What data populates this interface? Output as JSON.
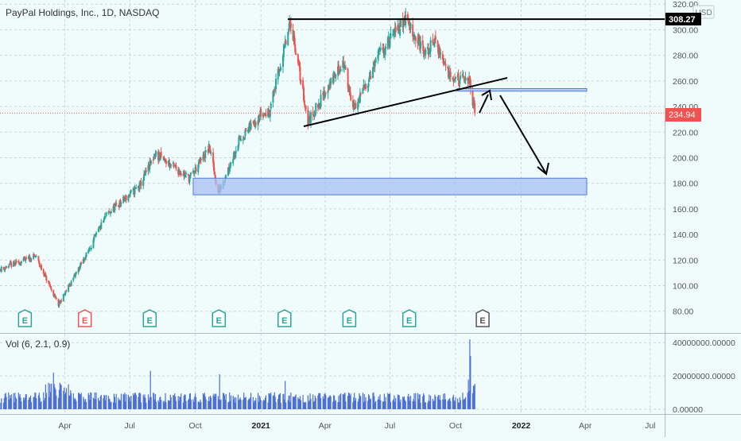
{
  "header": {
    "title": "PayPal Holdings, Inc., 1D, NASDAQ",
    "currency": "USD"
  },
  "price_tags": {
    "high": "308.27",
    "last": "234.94"
  },
  "colors": {
    "background": "#f0fcfc",
    "grid": "#c8d4d8",
    "up": "#26a69a",
    "down": "#ef5350",
    "volume": "#4c6fd6",
    "zone_fill": "#a8c0f4",
    "zone_stroke": "#4f7bdc",
    "drawing": "#000000",
    "last_price": "#ef5350",
    "earnings_green": "#26a69a",
    "earnings_red": "#ef5350",
    "earnings_gray": "#555555"
  },
  "chart_data": [
    {
      "type": "candlestick",
      "x_ticks": [
        "Apr",
        "Jul",
        "Oct",
        "2021",
        "Apr",
        "Jul",
        "Oct",
        "2022",
        "Apr",
        "Jul"
      ],
      "y_ticks": [
        "80.00",
        "100.00",
        "120.00",
        "140.00",
        "160.00",
        "180.00",
        "200.00",
        "220.00",
        "240.00",
        "260.00",
        "280.00",
        "300.00",
        "320.00"
      ],
      "ylim": [
        73,
        322
      ],
      "date_range": [
        "2020-01-02",
        "2021-10-28"
      ],
      "series": [
        {
          "key_points": [
            {
              "date": "2020-01-02",
              "close": 113
            },
            {
              "date": "2020-02-20",
              "close": 123
            },
            {
              "date": "2020-03-23",
              "close": 85
            },
            {
              "date": "2020-04-30",
              "close": 123
            },
            {
              "date": "2020-05-29",
              "close": 155
            },
            {
              "date": "2020-07-15",
              "close": 178
            },
            {
              "date": "2020-08-06",
              "close": 203
            },
            {
              "date": "2020-09-23",
              "close": 184
            },
            {
              "date": "2020-10-21",
              "close": 208
            },
            {
              "date": "2020-11-02",
              "close": 172
            },
            {
              "date": "2020-12-01",
              "close": 213
            },
            {
              "date": "2020-12-31",
              "close": 234
            },
            {
              "date": "2021-01-12",
              "close": 235
            },
            {
              "date": "2021-02-12",
              "close": 306
            },
            {
              "date": "2021-03-08",
              "close": 228
            },
            {
              "date": "2021-04-26",
              "close": 275
            },
            {
              "date": "2021-05-12",
              "close": 237
            },
            {
              "date": "2021-06-15",
              "close": 280
            },
            {
              "date": "2021-07-23",
              "close": 309
            },
            {
              "date": "2021-08-20",
              "close": 280
            },
            {
              "date": "2021-09-01",
              "close": 292
            },
            {
              "date": "2021-09-20",
              "close": 268
            },
            {
              "date": "2021-10-06",
              "close": 260
            },
            {
              "date": "2021-10-19",
              "close": 262
            },
            {
              "date": "2021-10-28",
              "close": 234.94
            }
          ]
        }
      ],
      "annotations": {
        "resistance_line": 308.27,
        "last_price_line": 234.94,
        "support_zone": [
          171,
          184
        ],
        "retest_zone": [
          252,
          254
        ],
        "earnings_markers": [
          {
            "date": "2020-02-05",
            "label": "E",
            "result": "beat"
          },
          {
            "date": "2020-04-29",
            "label": "E",
            "result": "miss"
          },
          {
            "date": "2020-07-29",
            "label": "E",
            "result": "beat"
          },
          {
            "date": "2020-11-03",
            "label": "E",
            "result": "beat"
          },
          {
            "date": "2021-02-03",
            "label": "E",
            "result": "beat"
          },
          {
            "date": "2021-05-05",
            "label": "E",
            "result": "beat"
          },
          {
            "date": "2021-07-28",
            "label": "E",
            "result": "beat"
          },
          {
            "date": "2021-11-08",
            "label": "E",
            "result": "upcoming"
          }
        ]
      }
    },
    {
      "type": "bar",
      "title": "Vol (6, 2.1, 0.9)",
      "y_ticks": [
        "0.00000",
        "20000000.00000",
        "40000000.00000"
      ],
      "ylim": [
        0,
        42000000
      ],
      "typical_volume": 7000000,
      "spikes": [
        {
          "date": "2020-03-16",
          "value": 22000000
        },
        {
          "date": "2020-07-30",
          "value": 23000000
        },
        {
          "date": "2020-11-04",
          "value": 21000000
        },
        {
          "date": "2021-02-04",
          "value": 17000000
        },
        {
          "date": "2021-10-21",
          "value": 42000000
        },
        {
          "date": "2021-10-22",
          "value": 32000000
        }
      ]
    }
  ]
}
